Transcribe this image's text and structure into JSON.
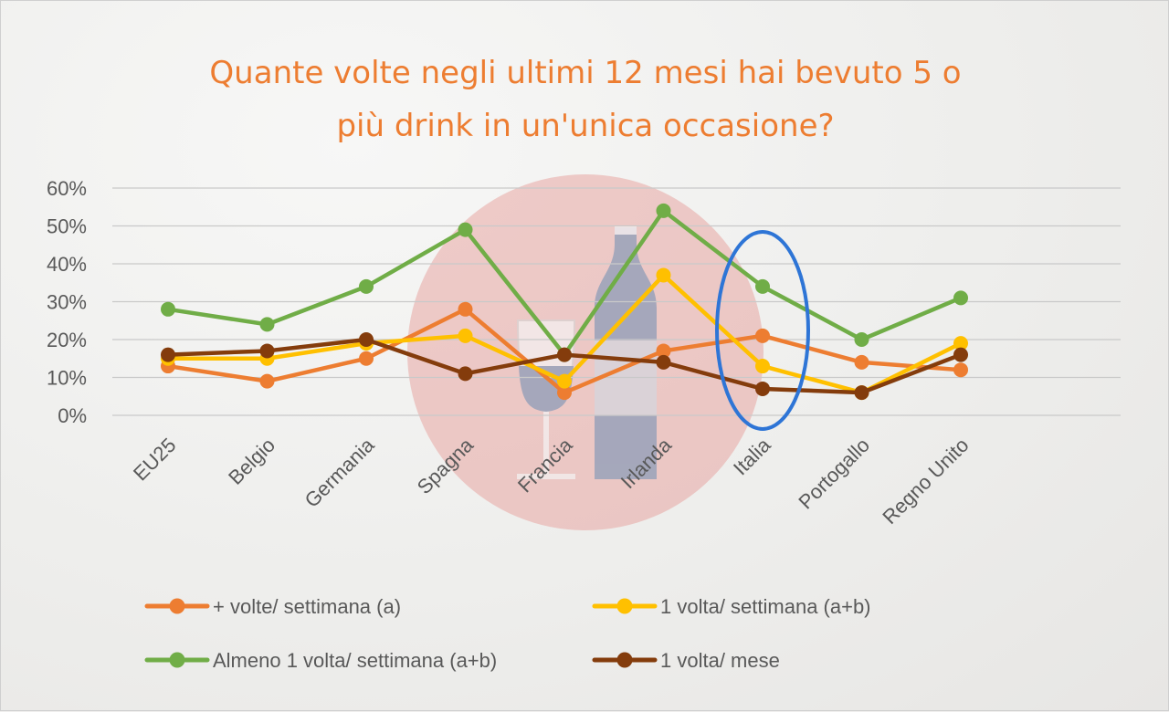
{
  "chart_data": {
    "type": "line",
    "title_lines": [
      "Quante volte negli ultimi 12 mesi hai bevuto 5 o",
      "più drink in un'unica occasione?"
    ],
    "categories": [
      "EU25",
      "Belgio",
      "Germania",
      "Spagna",
      "Francia",
      "Irlanda",
      "Italia",
      "Portogallo",
      "Regno Unito"
    ],
    "ylim": [
      0,
      60
    ],
    "yticks": [
      0,
      10,
      20,
      30,
      40,
      50,
      60
    ],
    "ytick_labels": [
      "0%",
      "10%",
      "20%",
      "30%",
      "40%",
      "50%",
      "60%"
    ],
    "grid": true,
    "legend_position": "bottom",
    "highlight": "Italia",
    "series": [
      {
        "name": "+ volte/ settimana (a)",
        "color": "#ed7d31",
        "values": [
          13,
          9,
          15,
          28,
          6,
          17,
          21,
          14,
          12
        ]
      },
      {
        "name": "1 volta/ settimana (a+b)",
        "color": "#ffc000",
        "values": [
          15,
          15,
          19,
          21,
          9,
          37,
          13,
          6,
          19
        ]
      },
      {
        "name": "Almeno 1 volta/ settimana (a+b)",
        "color": "#70ad47",
        "values": [
          28,
          24,
          34,
          49,
          16,
          54,
          34,
          20,
          31
        ]
      },
      {
        "name": "1 volta/ mese",
        "color": "#843c0c",
        "values": [
          16,
          17,
          20,
          11,
          16,
          14,
          7,
          6,
          16
        ]
      }
    ],
    "highlight_color": "#2e75d6",
    "background_circle_color": "#e8a5a3",
    "bottle_color": "#8e9db8"
  }
}
